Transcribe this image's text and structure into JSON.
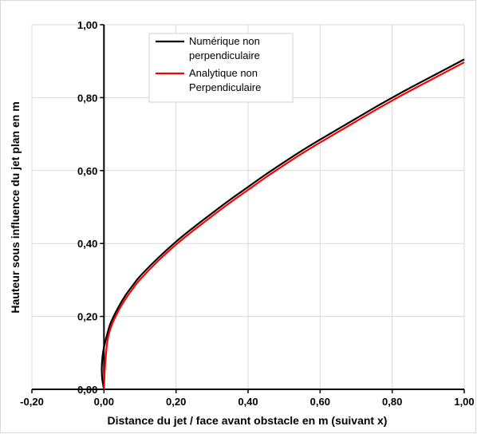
{
  "chart_data": {
    "type": "line",
    "title": "",
    "xlabel": "Distance du jet / face avant obstacle en m (suivant x)",
    "ylabel": "Hauteur sous influence du jet plan en m",
    "xlim": [
      -0.2,
      1.0
    ],
    "ylim": [
      0.0,
      1.0
    ],
    "x_ticks": [
      -0.2,
      0.0,
      0.2,
      0.4,
      0.6,
      0.8,
      1.0
    ],
    "y_ticks": [
      0.0,
      0.2,
      0.4,
      0.6,
      0.8,
      1.0
    ],
    "x_tick_labels": [
      "-0,20",
      "0,00",
      "0,20",
      "0,40",
      "0,60",
      "0,80",
      "1,00"
    ],
    "y_tick_labels": [
      "0,00",
      "0,20",
      "0,40",
      "0,60",
      "0,80",
      "1,00"
    ],
    "grid": true,
    "legend_position": "top-left-inside",
    "series": [
      {
        "name_lines": [
          "Numérique non",
          "perpendiculaire"
        ],
        "color": "#000000",
        "x": [
          0.0,
          -0.005,
          -0.006,
          -0.004,
          0.0,
          0.01,
          0.02,
          0.04,
          0.06,
          0.08,
          0.1,
          0.15,
          0.2,
          0.25,
          0.3,
          0.35,
          0.4,
          0.45,
          0.5,
          0.55,
          0.6,
          0.65,
          0.7,
          0.75,
          0.8,
          0.85,
          0.9,
          0.95,
          1.0
        ],
        "y": [
          0.0,
          0.03,
          0.06,
          0.09,
          0.115,
          0.155,
          0.185,
          0.225,
          0.258,
          0.285,
          0.31,
          0.36,
          0.405,
          0.445,
          0.483,
          0.52,
          0.555,
          0.59,
          0.623,
          0.655,
          0.685,
          0.714,
          0.743,
          0.772,
          0.8,
          0.827,
          0.853,
          0.879,
          0.905
        ]
      },
      {
        "name_lines": [
          "Analytique non",
          "Perpendiculaire"
        ],
        "color": "#ff0000",
        "x": [
          0.0,
          0.002,
          0.005,
          0.01,
          0.02,
          0.04,
          0.06,
          0.08,
          0.1,
          0.15,
          0.2,
          0.25,
          0.3,
          0.35,
          0.4,
          0.45,
          0.5,
          0.55,
          0.6,
          0.65,
          0.7,
          0.75,
          0.8,
          0.85,
          0.9,
          0.95,
          1.0
        ],
        "y": [
          0.0,
          0.05,
          0.09,
          0.135,
          0.172,
          0.215,
          0.248,
          0.276,
          0.301,
          0.352,
          0.397,
          0.437,
          0.475,
          0.512,
          0.547,
          0.582,
          0.615,
          0.647,
          0.677,
          0.706,
          0.735,
          0.764,
          0.792,
          0.819,
          0.845,
          0.871,
          0.897
        ]
      }
    ]
  }
}
